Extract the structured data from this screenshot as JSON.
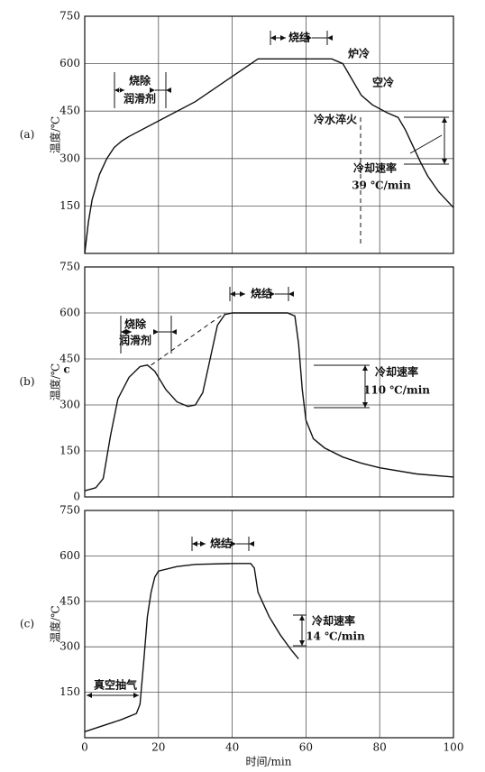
{
  "chart_data": [
    {
      "type": "line",
      "label": "(a)",
      "ylabel": "温度/℃",
      "xlim": [
        0,
        100
      ],
      "ylim": [
        0,
        750
      ],
      "yticks": [
        150,
        300,
        450,
        600,
        750
      ],
      "xticks": [
        0,
        20,
        40,
        60,
        80,
        100
      ],
      "xtick_labels": false,
      "grid": true,
      "color": "#111111",
      "series": [
        {
          "x": [
            0,
            1,
            2,
            4,
            6,
            8,
            10,
            12,
            30,
            47,
            55,
            67,
            70,
            72,
            75,
            78,
            82,
            85,
            87,
            89,
            91,
            93,
            96,
            100
          ],
          "values": [
            0,
            100,
            170,
            250,
            300,
            335,
            355,
            370,
            480,
            615,
            615,
            615,
            600,
            560,
            500,
            470,
            445,
            430,
            390,
            340,
            290,
            245,
            195,
            145
          ]
        }
      ],
      "annotations": [
        "烧结",
        "炉冷",
        "空冷",
        "冷水淬火",
        "冷却速率",
        "39 ℃/min",
        "烧除",
        "润滑剂"
      ]
    },
    {
      "type": "line",
      "label": "(b)",
      "ylabel": "温度/℃",
      "xlim": [
        0,
        100
      ],
      "ylim": [
        0,
        750
      ],
      "yticks": [
        0,
        150,
        300,
        450,
        600,
        750
      ],
      "xticks": [
        0,
        20,
        40,
        60,
        80,
        100
      ],
      "xtick_labels": false,
      "grid": true,
      "color": "#111111",
      "series": [
        {
          "x": [
            0,
            3,
            5,
            7,
            9,
            12,
            15,
            17,
            19,
            22,
            25,
            28,
            30,
            32,
            34,
            36,
            38,
            40,
            55,
            57,
            58,
            59,
            60,
            62,
            65,
            70,
            75,
            80,
            90,
            100
          ],
          "values": [
            20,
            30,
            60,
            200,
            320,
            390,
            425,
            430,
            410,
            350,
            310,
            295,
            300,
            340,
            450,
            560,
            595,
            600,
            600,
            590,
            500,
            350,
            250,
            190,
            160,
            130,
            110,
            95,
            75,
            65
          ]
        }
      ],
      "annotations": [
        "烧结",
        "烧除",
        "润滑剂",
        "冷却速率",
        "110 ℃/min",
        "c"
      ]
    },
    {
      "type": "line",
      "label": "(c)",
      "ylabel": "温度/℃",
      "xlabel": "时间/min",
      "xlim": [
        0,
        100
      ],
      "ylim": [
        0,
        750
      ],
      "yticks": [
        150,
        300,
        450,
        600,
        750
      ],
      "xticks": [
        0,
        20,
        40,
        60,
        80,
        100
      ],
      "xtick_labels": true,
      "grid": true,
      "color": "#111111",
      "series": [
        {
          "x": [
            0,
            5,
            10,
            14,
            15,
            16,
            17,
            18,
            19,
            20,
            25,
            30,
            40,
            45,
            46,
            47,
            50,
            53,
            56,
            58
          ],
          "values": [
            20,
            40,
            60,
            80,
            110,
            250,
            400,
            480,
            530,
            550,
            565,
            572,
            575,
            575,
            560,
            480,
            400,
            340,
            290,
            260
          ]
        }
      ],
      "annotations": [
        "烧结",
        "冷却速率",
        "14 ℃/min",
        "真空抽气"
      ]
    }
  ]
}
